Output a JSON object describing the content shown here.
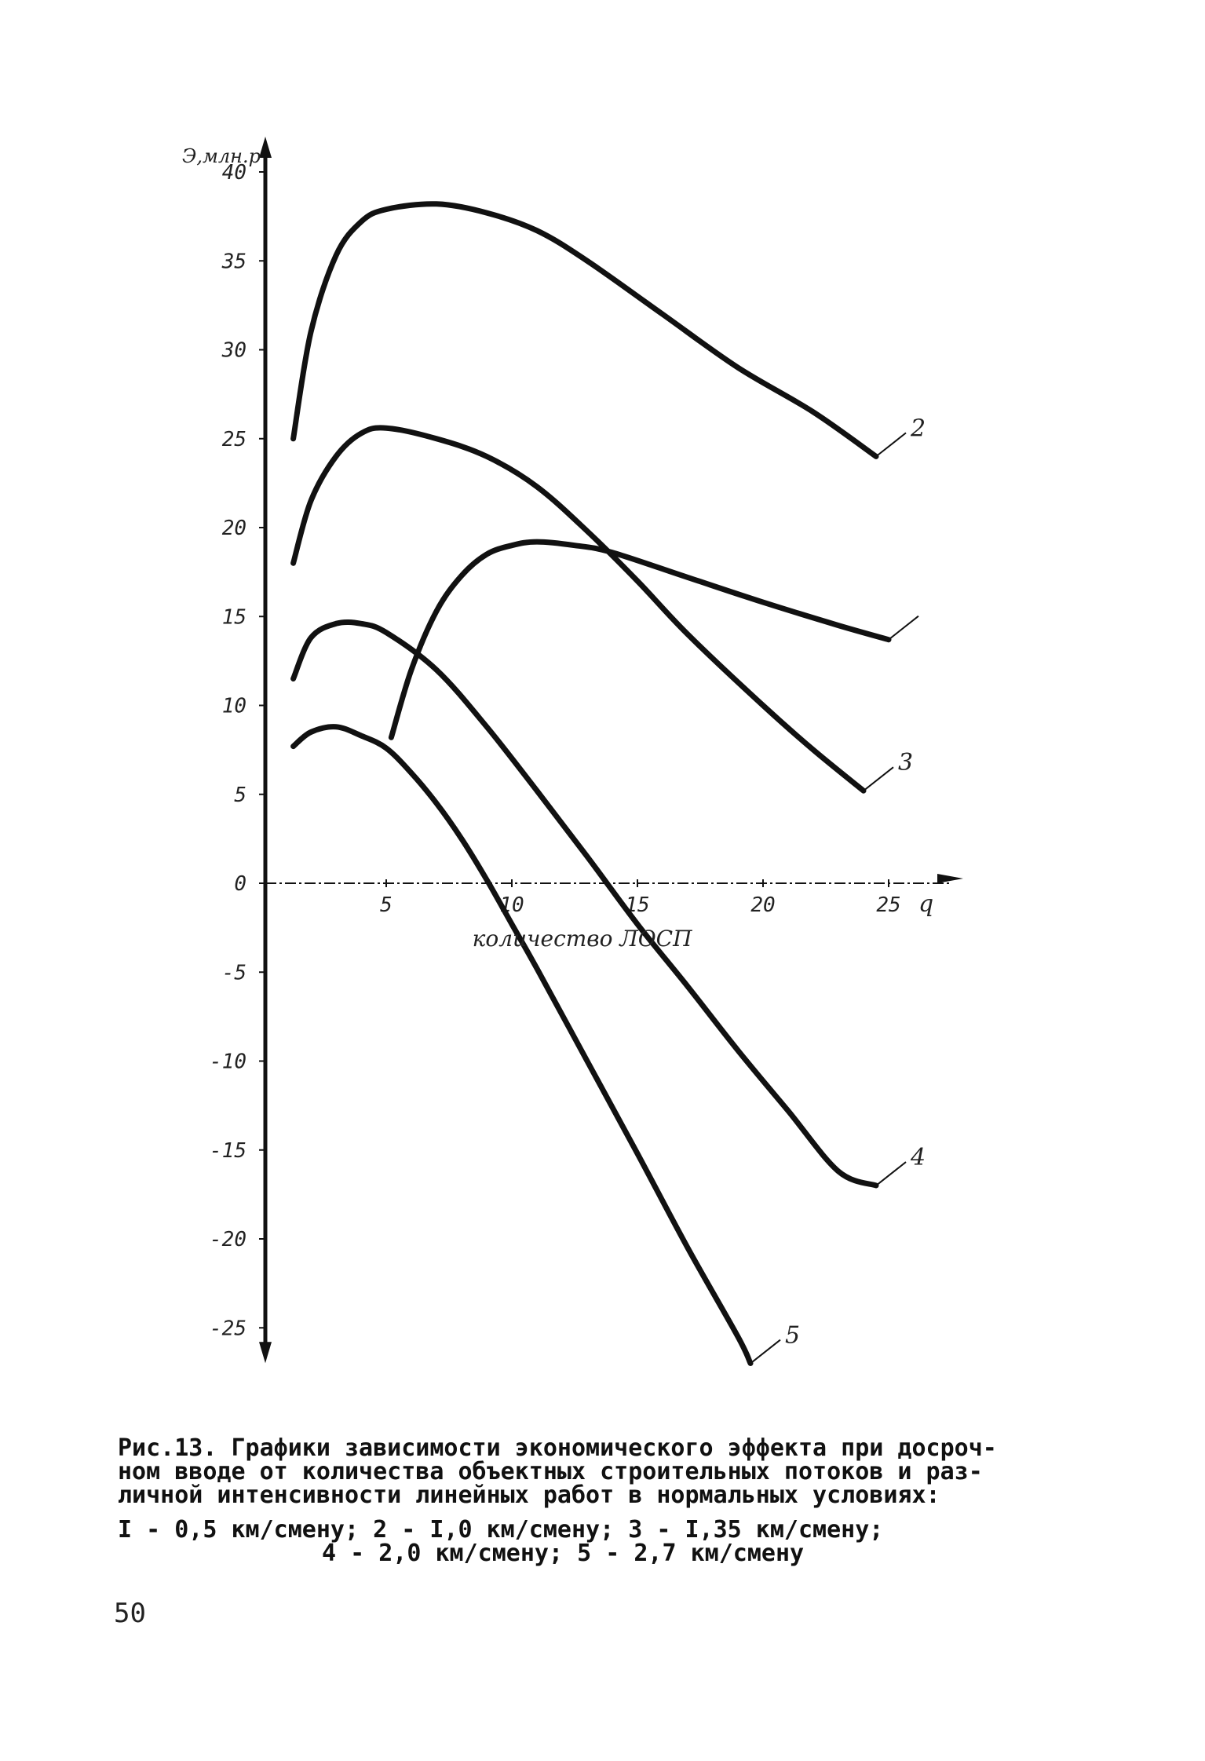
{
  "chart_data": {
    "type": "line",
    "title": "",
    "ylabel": "Э,млн.р",
    "xlabel": "количество ЛОСП",
    "x_axis_symbol": "q",
    "xlim": [
      0,
      25
    ],
    "ylim": [
      -25,
      40
    ],
    "x_ticks": [
      "5",
      "10",
      "15",
      "20",
      "25"
    ],
    "y_ticks": [
      "40",
      "35",
      "30",
      "25",
      "20",
      "15",
      "10",
      "5",
      "0",
      "-5",
      "-10",
      "-15",
      "-20",
      "-25"
    ],
    "grid": false,
    "series": [
      {
        "name": "2",
        "points": [
          [
            1.3,
            25
          ],
          [
            2,
            31
          ],
          [
            3,
            35.3
          ],
          [
            4,
            37.2
          ],
          [
            5,
            37.9
          ],
          [
            7,
            38.2
          ],
          [
            9,
            37.7
          ],
          [
            11,
            36.7
          ],
          [
            13,
            35
          ],
          [
            16,
            32
          ],
          [
            19,
            29
          ],
          [
            22,
            26.5
          ],
          [
            24.5,
            24
          ]
        ]
      },
      {
        "name": "",
        "points": [
          [
            5.2,
            8.2
          ],
          [
            6,
            12
          ],
          [
            7,
            15.3
          ],
          [
            8,
            17.3
          ],
          [
            9,
            18.5
          ],
          [
            10,
            19
          ],
          [
            11,
            19.2
          ],
          [
            12.5,
            19
          ],
          [
            14,
            18.6
          ],
          [
            17,
            17.2
          ],
          [
            20,
            15.8
          ],
          [
            23,
            14.5
          ],
          [
            25,
            13.7
          ]
        ]
      },
      {
        "name": "3",
        "points": [
          [
            1.3,
            18
          ],
          [
            2,
            21.5
          ],
          [
            3,
            24
          ],
          [
            4,
            25.3
          ],
          [
            5,
            25.6
          ],
          [
            7,
            25
          ],
          [
            9,
            24
          ],
          [
            11,
            22.3
          ],
          [
            13,
            19.8
          ],
          [
            15,
            17
          ],
          [
            17,
            14
          ],
          [
            20,
            10
          ],
          [
            22,
            7.5
          ],
          [
            24,
            5.2
          ]
        ]
      },
      {
        "name": "4",
        "points": [
          [
            1.3,
            11.5
          ],
          [
            2,
            13.8
          ],
          [
            3,
            14.6
          ],
          [
            4,
            14.6
          ],
          [
            5,
            14.1
          ],
          [
            7,
            12
          ],
          [
            9,
            8.8
          ],
          [
            11,
            5.2
          ],
          [
            13,
            1.5
          ],
          [
            15,
            -2.3
          ],
          [
            17,
            -5.8
          ],
          [
            19,
            -9.4
          ],
          [
            21,
            -12.8
          ],
          [
            23,
            -16.2
          ],
          [
            24.5,
            -17
          ]
        ]
      },
      {
        "name": "5",
        "points": [
          [
            1.3,
            7.7
          ],
          [
            2,
            8.5
          ],
          [
            3,
            8.8
          ],
          [
            4,
            8.3
          ],
          [
            5,
            7.6
          ],
          [
            6,
            6.2
          ],
          [
            7,
            4.5
          ],
          [
            8,
            2.5
          ],
          [
            9,
            0.2
          ],
          [
            10,
            -2.3
          ],
          [
            11,
            -4.8
          ],
          [
            13,
            -10
          ],
          [
            15,
            -15.2
          ],
          [
            17,
            -20.5
          ],
          [
            19,
            -25.5
          ],
          [
            19.5,
            -27
          ]
        ]
      }
    ],
    "curve_labels": [
      "2",
      "3",
      "4",
      "5"
    ]
  },
  "caption": {
    "lines": [
      "Рис.13. Графики зависимости экономического эффекта при досроч-",
      "ном вводе от количества объектных строительных потоков и раз-",
      "личной интенсивности линейных работ в нормальных условиях:"
    ],
    "legend_line1": "I - 0,5 км/смену; 2 - I,0 км/смену; 3 - I,35 км/смену;",
    "legend_line2": "4 - 2,0 км/смену; 5 - 2,7 км/смену"
  },
  "page_number": "50"
}
